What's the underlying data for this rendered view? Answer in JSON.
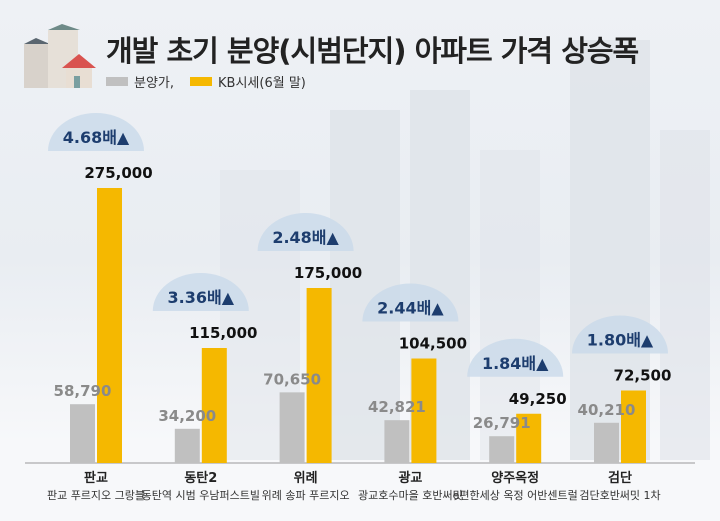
{
  "title": "개발 초기 분양(시범단지) 아파트 가격 상승폭",
  "legend": [
    {
      "label": "분양가,",
      "color": "#c0c0c0"
    },
    {
      "label": "KB시세(6월 말)",
      "color": "#f5b800"
    }
  ],
  "chart_data": {
    "type": "bar",
    "title": "개발 초기 분양(시범단지) 아파트 가격 상승폭",
    "categories": [
      "판교",
      "동탄2",
      "위례",
      "광교",
      "양주옥정",
      "검단"
    ],
    "subcategories": [
      "판교 푸르지오 그랑블",
      "동탄역 시범 우남퍼스트빌",
      "위례 송파 푸르지오",
      "광교호수마을 호반써밋",
      "e편한세상 옥정 어반센트럴",
      "검단호반써밋 1차"
    ],
    "series": [
      {
        "name": "분양가,",
        "color": "#c0c0c0",
        "values": [
          58790,
          34200,
          70650,
          42821,
          26791,
          40210
        ],
        "labels": [
          "58,790",
          "34,200",
          "70,650",
          "42,821",
          "26,791",
          "40,210"
        ]
      },
      {
        "name": "KB시세(6월 말)",
        "color": "#f5b800",
        "values": [
          275000,
          115000,
          175000,
          104500,
          49250,
          72500
        ],
        "labels": [
          "275,000",
          "115,000",
          "175,000",
          "104,500",
          "49,250",
          "72,500"
        ]
      }
    ],
    "multipliers": [
      "4.68배▲",
      "3.36배▲",
      "2.48배▲",
      "2.44배▲",
      "1.84배▲",
      "1.80배▲"
    ],
    "ylim": [
      0,
      280000
    ],
    "grid": false,
    "legend_position": "top-left"
  }
}
